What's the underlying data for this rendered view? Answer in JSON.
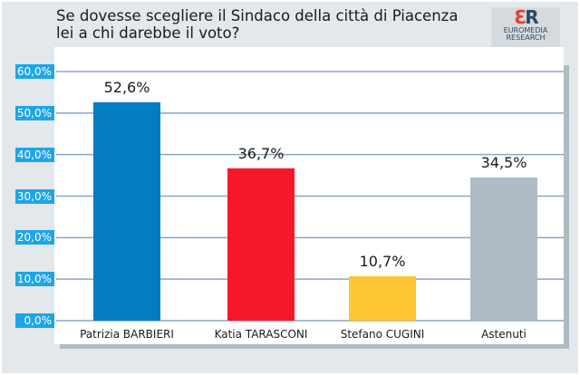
{
  "chart_data": {
    "type": "bar",
    "title": "Se dovesse scegliere il Sindaco della città di Piacenza\nlei a chi darebbe il voto?",
    "categories": [
      "Patrizia BARBIERI",
      "Katia TARASCONI",
      "Stefano CUGINI",
      "Astenuti"
    ],
    "values": [
      52.6,
      36.7,
      10.7,
      34.5
    ],
    "data_labels": [
      "52,6%",
      "36,7%",
      "10,7%",
      "34,5%"
    ],
    "colors": [
      "#027dc2",
      "#f61829",
      "#fec532",
      "#adbcc4"
    ],
    "ylim": [
      0,
      60
    ],
    "yticks": [
      "0,0%",
      "10,0%",
      "20,0%",
      "30,0%",
      "40,0%",
      "50,0%",
      "60,0%"
    ],
    "grid": true,
    "xlabel": "",
    "ylabel": ""
  },
  "logo": {
    "mark": "ER",
    "text": "EUROMEDIA RESEARCH"
  }
}
